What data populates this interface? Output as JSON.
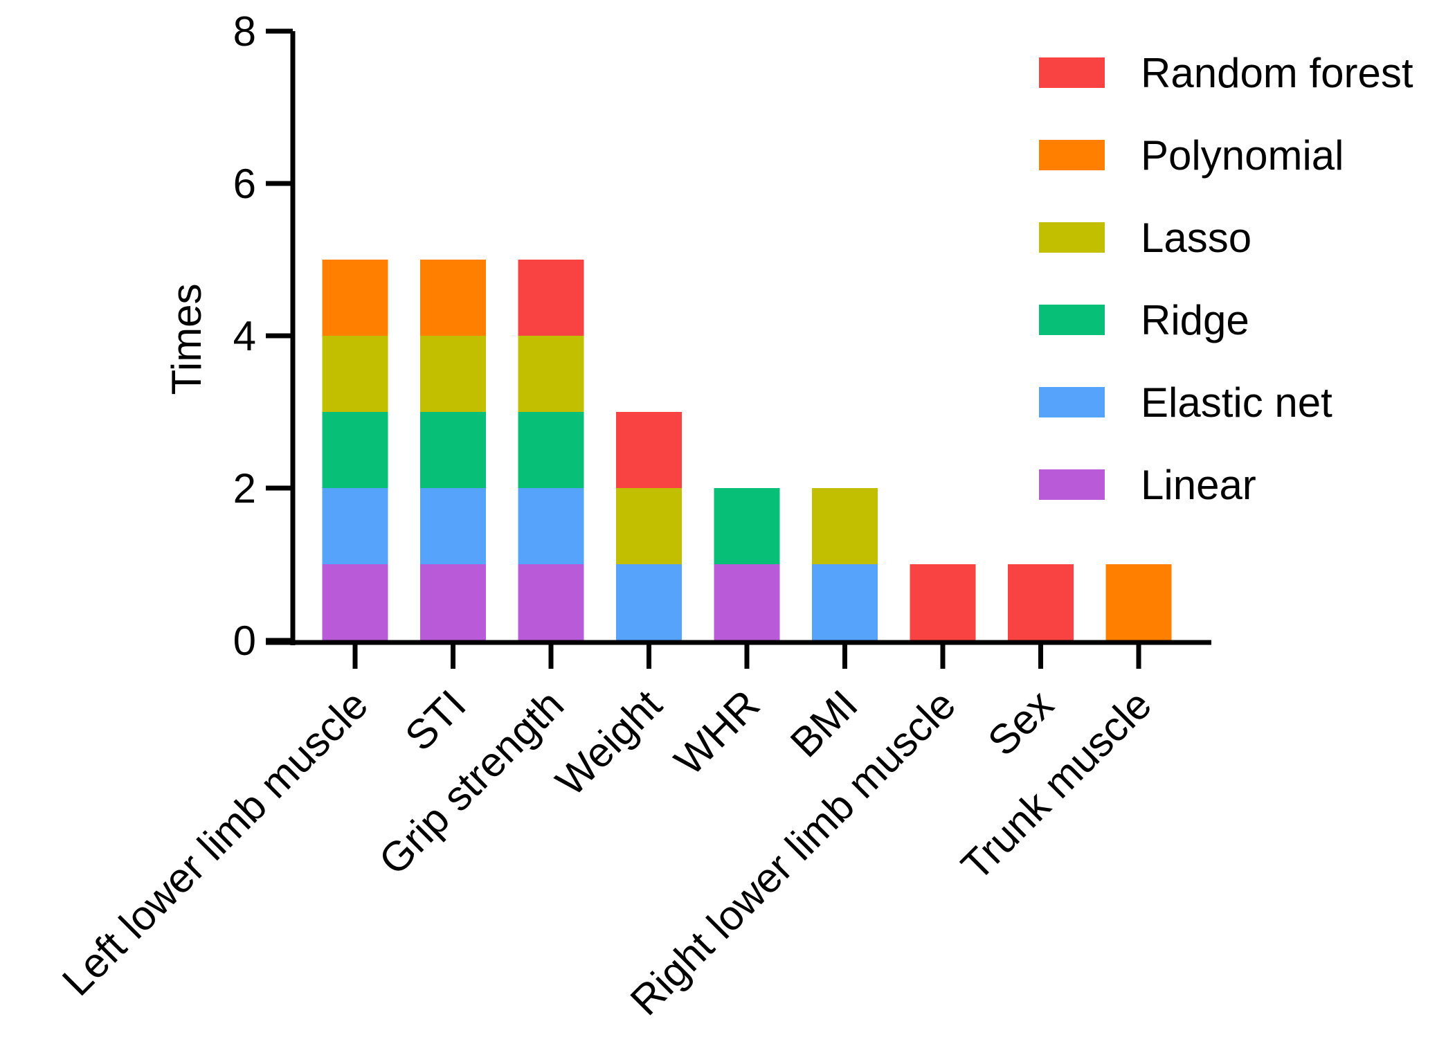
{
  "chart_data": {
    "type": "bar",
    "stacked": true,
    "title": "",
    "xlabel": "",
    "ylabel": "Times",
    "ylim": [
      0,
      8
    ],
    "yticks": [
      0,
      2,
      4,
      6,
      8
    ],
    "grid": false,
    "legend_position": "top-right",
    "categories": [
      "Left lower limb muscle",
      "STI",
      "Grip strength",
      "Weight",
      "WHR",
      "BMI",
      "Right lower limb muscle",
      "Sex",
      "Trunk muscle"
    ],
    "series": [
      {
        "name": "Linear",
        "color": "#B95AD9",
        "values": [
          1,
          1,
          1,
          0,
          1,
          0,
          0,
          0,
          0
        ]
      },
      {
        "name": "Elastic net",
        "color": "#56A3FC",
        "values": [
          1,
          1,
          1,
          1,
          0,
          1,
          0,
          0,
          0
        ]
      },
      {
        "name": "Ridge",
        "color": "#07BF76",
        "values": [
          1,
          1,
          1,
          0,
          1,
          0,
          0,
          0,
          0
        ]
      },
      {
        "name": "Lasso",
        "color": "#C2BF00",
        "values": [
          1,
          1,
          1,
          1,
          0,
          1,
          0,
          0,
          0
        ]
      },
      {
        "name": "Polynomial",
        "color": "#FF8000",
        "values": [
          1,
          1,
          0,
          0,
          0,
          0,
          0,
          0,
          1
        ]
      },
      {
        "name": "Random forest",
        "color": "#F94343",
        "values": [
          0,
          0,
          1,
          1,
          0,
          0,
          1,
          1,
          0
        ]
      }
    ],
    "legend_order": [
      "Random forest",
      "Polynomial",
      "Lasso",
      "Ridge",
      "Elastic net",
      "Linear"
    ]
  }
}
